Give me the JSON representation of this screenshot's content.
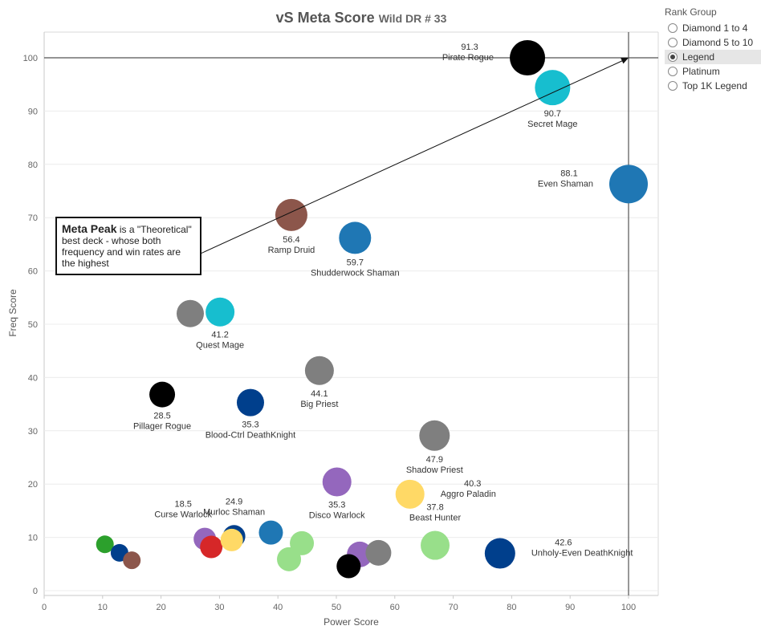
{
  "title": {
    "main": "vS Meta Score",
    "sub": "Wild DR # 33"
  },
  "legend": {
    "title": "Rank Group",
    "items": [
      {
        "label": "Diamond 1 to 4",
        "selected": false
      },
      {
        "label": "Diamond 5 to 10",
        "selected": false
      },
      {
        "label": "Legend",
        "selected": true
      },
      {
        "label": "Platinum",
        "selected": false
      },
      {
        "label": "Top 1K Legend",
        "selected": false
      }
    ]
  },
  "annotation": {
    "bold": "Meta Peak",
    "text": " is a \"Theoretical\" best deck - whose both frequency and win rates are the highest"
  },
  "chart_data": {
    "type": "scatter",
    "xlabel": "Power Score",
    "ylabel": "Freq Score",
    "xlim": [
      0,
      105
    ],
    "ylim": [
      -1,
      105
    ],
    "xticks": [
      0,
      10,
      20,
      30,
      40,
      50,
      60,
      70,
      80,
      90,
      100
    ],
    "yticks": [
      0,
      10,
      20,
      30,
      40,
      50,
      60,
      70,
      80,
      90,
      100
    ],
    "grid": "horizontal",
    "reference_lines": {
      "x": 100,
      "y": 100
    },
    "arrow": {
      "from": [
        27,
        64
      ],
      "to": [
        100,
        100
      ]
    },
    "points": [
      {
        "name": "Pirate Rogue",
        "score": "91.3",
        "x": 82.7,
        "y": 100,
        "color": "#000000",
        "size": 22,
        "label_pos": "left"
      },
      {
        "name": "Secret Mage",
        "score": "90.7",
        "x": 87,
        "y": 94.4,
        "color": "#17becf",
        "size": 22,
        "label_pos": "below"
      },
      {
        "name": "Even Shaman",
        "score": "88.1",
        "x": 100,
        "y": 76.3,
        "color": "#1f77b4",
        "size": 24,
        "label_pos": "left"
      },
      {
        "name": "Ramp Druid",
        "score": "56.4",
        "x": 42.3,
        "y": 70.5,
        "color": "#8c564b",
        "size": 20,
        "label_pos": "below"
      },
      {
        "name": "Shudderwock Shaman",
        "score": "59.7",
        "x": 53.2,
        "y": 66.2,
        "color": "#1f77b4",
        "size": 20,
        "label_pos": "below"
      },
      {
        "name": "Quest Mage",
        "score": "41.2",
        "x": 30.1,
        "y": 52.3,
        "color": "#17becf",
        "size": 18,
        "label_pos": "below"
      },
      {
        "name": "",
        "score": "",
        "x": 25,
        "y": 52,
        "color": "#7f7f7f",
        "size": 17,
        "label_pos": "none"
      },
      {
        "name": "Big Priest",
        "score": "44.1",
        "x": 47.1,
        "y": 41.3,
        "color": "#7f7f7f",
        "size": 18,
        "label_pos": "below"
      },
      {
        "name": "Pillager Rogue",
        "score": "28.5",
        "x": 20.2,
        "y": 36.8,
        "color": "#000000",
        "size": 16,
        "label_pos": "below"
      },
      {
        "name": "Blood-Ctrl DeathKnight",
        "score": "35.3",
        "x": 35.3,
        "y": 35.3,
        "color": "#003f8c",
        "size": 17,
        "label_pos": "below"
      },
      {
        "name": "Shadow Priest",
        "score": "47.9",
        "x": 66.8,
        "y": 29.1,
        "color": "#7f7f7f",
        "size": 19,
        "label_pos": "below"
      },
      {
        "name": "Disco Warlock",
        "score": "35.3",
        "x": 50.1,
        "y": 20.4,
        "color": "#9467bd",
        "size": 18,
        "label_pos": "below"
      },
      {
        "name": "Aggro Paladin",
        "score": "40.3",
        "x": 62.6,
        "y": 18.1,
        "color": "#ffd966",
        "size": 18,
        "label_pos": "right"
      },
      {
        "name": "Beast Hunter",
        "score": "37.8",
        "x": 66.9,
        "y": 8.5,
        "color": "#98df8a",
        "size": 18,
        "label_pos": "above"
      },
      {
        "name": "Unholy-Even DeathKnight",
        "score": "42.6",
        "x": 78,
        "y": 7,
        "color": "#003f8c",
        "size": 19,
        "label_pos": "right"
      },
      {
        "name": "Murloc Shaman",
        "score": "24.9",
        "x": 32.5,
        "y": 10.2,
        "color": "#003f8c",
        "size": 14,
        "label_pos": "above"
      },
      {
        "name": "Curse Warlock",
        "score": "18.5",
        "x": 27.5,
        "y": 9.7,
        "color": "#9467bd",
        "size": 14,
        "label_pos": "above-left"
      },
      {
        "name": "",
        "score": "",
        "x": 28.6,
        "y": 8.2,
        "color": "#d62728",
        "size": 14,
        "label_pos": "none"
      },
      {
        "name": "",
        "score": "",
        "x": 32.1,
        "y": 9.5,
        "color": "#ffd966",
        "size": 14,
        "label_pos": "none"
      },
      {
        "name": "",
        "score": "",
        "x": 38.8,
        "y": 10.9,
        "color": "#1f77b4",
        "size": 15,
        "label_pos": "none"
      },
      {
        "name": "",
        "score": "",
        "x": 44.1,
        "y": 8.9,
        "color": "#98df8a",
        "size": 15,
        "label_pos": "none"
      },
      {
        "name": "",
        "score": "",
        "x": 41.9,
        "y": 5.9,
        "color": "#98df8a",
        "size": 15,
        "label_pos": "none"
      },
      {
        "name": "",
        "score": "",
        "x": 54,
        "y": 6.8,
        "color": "#9467bd",
        "size": 16,
        "label_pos": "none"
      },
      {
        "name": "",
        "score": "",
        "x": 57.2,
        "y": 7.1,
        "color": "#7f7f7f",
        "size": 16,
        "label_pos": "none"
      },
      {
        "name": "",
        "score": "",
        "x": 52.1,
        "y": 4.6,
        "color": "#000000",
        "size": 15,
        "label_pos": "none"
      },
      {
        "name": "",
        "score": "",
        "x": 10.4,
        "y": 8.7,
        "color": "#2ca02c",
        "size": 11,
        "label_pos": "none"
      },
      {
        "name": "",
        "score": "",
        "x": 12.9,
        "y": 7.1,
        "color": "#003f8c",
        "size": 11,
        "label_pos": "none"
      },
      {
        "name": "",
        "score": "",
        "x": 15,
        "y": 5.7,
        "color": "#8c564b",
        "size": 11,
        "label_pos": "none"
      }
    ]
  }
}
